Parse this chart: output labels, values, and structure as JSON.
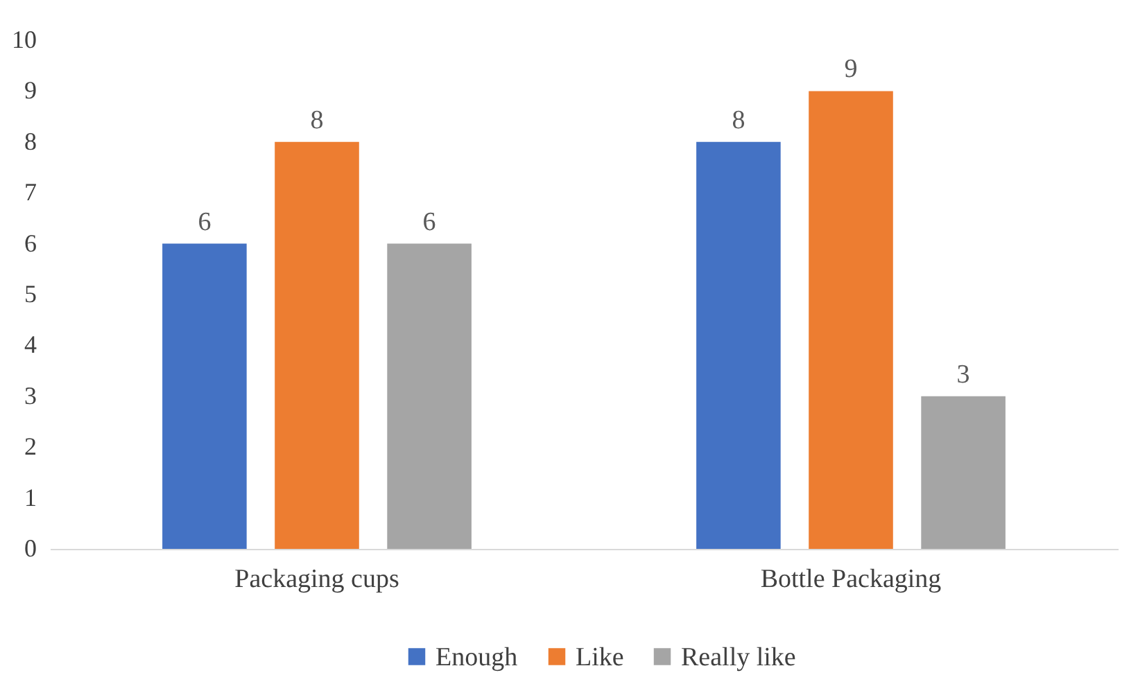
{
  "chart_data": {
    "type": "bar",
    "categories": [
      "Packaging cups",
      "Bottle Packaging"
    ],
    "series": [
      {
        "name": "Enough",
        "color": "#4472c4",
        "values": [
          6,
          8
        ]
      },
      {
        "name": "Like",
        "color": "#ed7d31",
        "values": [
          8,
          9
        ]
      },
      {
        "name": "Really like",
        "color": "#a5a5a5",
        "values": [
          6,
          3
        ]
      }
    ],
    "ylim": [
      0,
      10
    ],
    "yticks": [
      0,
      1,
      2,
      3,
      4,
      5,
      6,
      7,
      8,
      9,
      10
    ],
    "data_labels": true,
    "legend": "bottom"
  }
}
